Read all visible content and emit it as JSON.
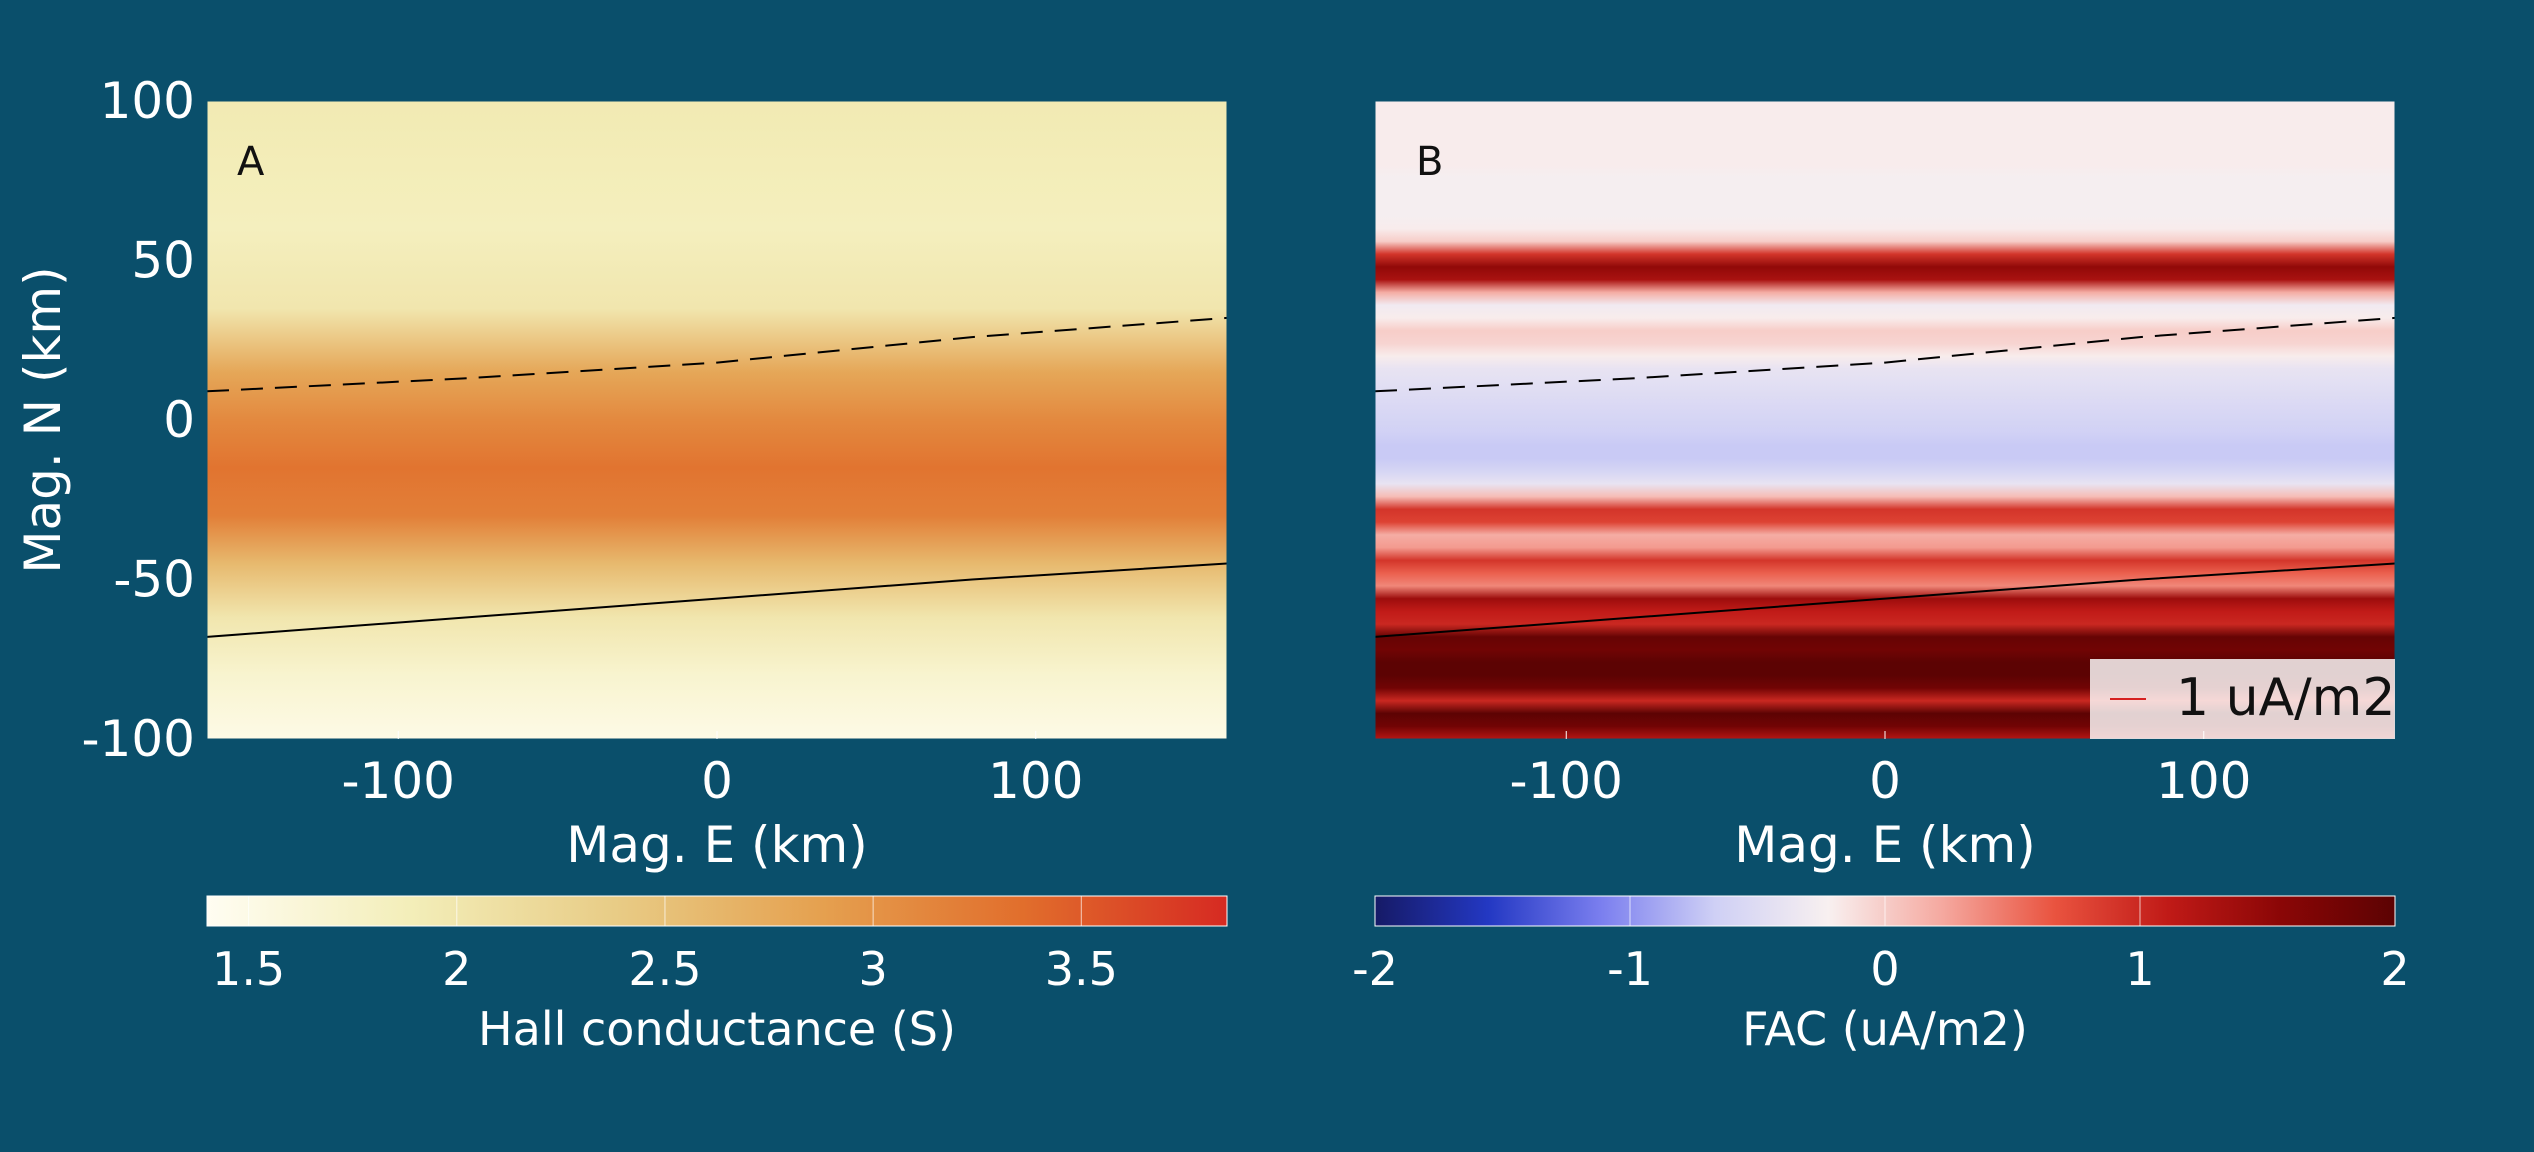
{
  "chart_data": [
    {
      "type": "heatmap",
      "panel_label": "A",
      "xlabel": "Mag. E (km)",
      "ylabel": "Mag. N (km)",
      "xlim": [
        -160,
        160
      ],
      "ylim": [
        -100,
        100
      ],
      "xticks": [
        -100,
        0,
        100
      ],
      "yticks": [
        -100,
        -50,
        0,
        50,
        100
      ],
      "quantity": "Hall conductance",
      "colorbar": {
        "label": "Hall conductance (S)",
        "range": [
          1.4,
          3.85
        ],
        "ticks": [
          "1.5",
          "2",
          "2.5",
          "3",
          "3.5"
        ],
        "tick_values": [
          1.5,
          2,
          2.5,
          3,
          3.5
        ],
        "colormap": [
          "#fffdf2",
          "#f3eeb9",
          "#e8cc86",
          "#e5a150",
          "#e16e2c",
          "#d62a22"
        ]
      },
      "field_profile": {
        "y": [
          -100,
          -80,
          -62,
          -45,
          -30,
          -15,
          0,
          15,
          35,
          60,
          80,
          100
        ],
        "values": [
          1.5,
          1.7,
          2.0,
          2.6,
          3.2,
          3.3,
          3.1,
          2.8,
          2.0,
          1.85,
          1.9,
          1.95
        ]
      },
      "boundaries": [
        {
          "style": "solid",
          "x": [
            -160,
            -80,
            0,
            80,
            160
          ],
          "y": [
            -68,
            -62,
            -56,
            -50,
            -45
          ]
        },
        {
          "style": "dashed",
          "x": [
            -160,
            -80,
            0,
            80,
            160
          ],
          "y": [
            9,
            13,
            18,
            26,
            32
          ]
        }
      ]
    },
    {
      "type": "heatmap",
      "panel_label": "B",
      "xlabel": "Mag. E (km)",
      "ylabel": "",
      "xlim": [
        -160,
        160
      ],
      "ylim": [
        -100,
        100
      ],
      "xticks": [
        -100,
        0,
        100
      ],
      "yticks": [],
      "quantity": "FAC",
      "colorbar": {
        "label": "FAC (uA/m2)",
        "range": [
          -2,
          2
        ],
        "ticks": [
          "-2",
          "-1",
          "0",
          "1",
          "2"
        ],
        "tick_values": [
          -2,
          -1,
          0,
          1,
          2
        ],
        "colormap": [
          "#161a66",
          "#2338c3",
          "#7b7fef",
          "#cfd0f5",
          "#f8f0f0",
          "#f5a9a0",
          "#e9533f",
          "#c01a17",
          "#8a0606",
          "#5c0303"
        ]
      },
      "field_profile": {
        "y": [
          -100,
          -96,
          -92,
          -88,
          -84,
          -80,
          -76,
          -72,
          -68,
          -64,
          -60,
          -56,
          -52,
          -48,
          -44,
          -40,
          -36,
          -32,
          -28,
          -24,
          -20,
          -16,
          -12,
          -8,
          -4,
          0,
          4,
          8,
          12,
          16,
          20,
          24,
          28,
          32,
          36,
          40,
          44,
          48,
          52,
          56,
          60,
          64,
          68,
          72,
          76,
          80,
          84,
          88,
          92,
          96,
          100
        ],
        "values": [
          1.2,
          1.8,
          2.0,
          1.0,
          1.8,
          2.0,
          2.0,
          1.8,
          1.9,
          1.0,
          1.1,
          1.4,
          0.4,
          0.6,
          0.9,
          0.3,
          0.2,
          0.8,
          0.9,
          0.1,
          -0.4,
          -0.6,
          -0.7,
          -0.7,
          -0.65,
          -0.6,
          -0.55,
          -0.5,
          -0.45,
          -0.4,
          -0.2,
          -0.05,
          0.0,
          -0.2,
          -0.3,
          0.2,
          1.3,
          1.5,
          0.9,
          0.0,
          -0.2,
          -0.25,
          -0.25,
          -0.25,
          -0.25,
          -0.2,
          -0.2,
          -0.2,
          -0.2,
          -0.2,
          -0.2
        ]
      },
      "boundaries": [
        {
          "style": "solid",
          "x": [
            -160,
            -80,
            0,
            80,
            160
          ],
          "y": [
            -68,
            -62,
            -56,
            -50,
            -45
          ]
        },
        {
          "style": "dashed",
          "x": [
            -160,
            -80,
            0,
            80,
            160
          ],
          "y": [
            9,
            13,
            18,
            26,
            32
          ]
        }
      ],
      "legend": {
        "label": "1 uA/m2",
        "position": "bottom-right",
        "color": "#d62020"
      }
    }
  ]
}
